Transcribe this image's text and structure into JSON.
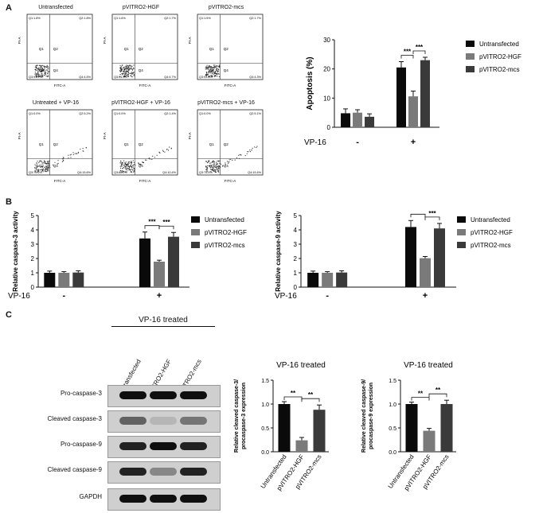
{
  "panels": {
    "a": "A",
    "b": "B",
    "c": "C"
  },
  "flow": {
    "x_label": "FITC-A",
    "y_label": "PI-A",
    "quadrants": {
      "q1": "Q1",
      "q2": "Q2",
      "q3": "Q3",
      "q4": "Q4"
    },
    "plots": [
      {
        "title": "Untransfected",
        "q1": "Q1:1.8%",
        "q2": "Q2:1.8%",
        "q3": "Q3:91.9%",
        "q4": "Q4:4.5%"
      },
      {
        "title": "pVITRO2-HGF",
        "q1": "Q1:1.6%",
        "q2": "Q2:1.7%",
        "q3": "Q3:91.9%",
        "q4": "Q4:4.7%"
      },
      {
        "title": "pVITRO2-mcs",
        "q1": "Q1:1.5%",
        "q2": "Q2:1.7%",
        "q3": "Q3:93.0%",
        "q4": "Q4:4.3%"
      },
      {
        "title": "Untreated + VP-16",
        "q1": "Q1:0.0%",
        "q2": "Q2:5.2%",
        "q3": "Q3:79.2%",
        "q4": "Q4:15.6%"
      },
      {
        "title": "pVITRO2-HGF + VP-16",
        "q1": "Q1:0.0%",
        "q2": "Q2:1.4%",
        "q3": "Q3:88.2%",
        "q4": "Q4:10.4%"
      },
      {
        "title": "pVITRO2-mcs + VP-16",
        "q1": "Q1:0.0%",
        "q2": "Q2:5.1%",
        "q3": "Q3:75.5%",
        "q4": "Q4:19.4%"
      }
    ]
  },
  "legend_names": [
    "Untransfected",
    "pVITRO2-HGF",
    "pVITRO2-mcs"
  ],
  "colors": {
    "untransfected": "#0a0a0a",
    "hgf": "#7a7a7a",
    "mcs": "#3a3a3a"
  },
  "vp16": {
    "label": "VP-16",
    "minus": "-",
    "plus": "+"
  },
  "significance": {
    "triple": "***",
    "double": "**"
  },
  "blot": {
    "header": "VP-16 treated",
    "lanes": [
      "Untransfected",
      "pVITRO2-HGF",
      "pVITRO2-mcs"
    ],
    "rows": [
      "Pro-caspase-3",
      "Cleaved caspase-3",
      "Pro-caspase-9",
      "Cleaved caspase-9",
      "GAPDH"
    ],
    "band_intensity": [
      [
        1.0,
        1.0,
        1.0
      ],
      [
        0.55,
        0.1,
        0.45
      ],
      [
        0.9,
        1.0,
        0.9
      ],
      [
        0.9,
        0.35,
        0.9
      ],
      [
        1.0,
        1.0,
        1.0
      ]
    ]
  },
  "chart_data": [
    {
      "id": "apoptosis",
      "type": "bar",
      "ylabel": "Apoptosis (%)",
      "ylim": [
        0,
        30
      ],
      "yticks": [
        0,
        10,
        20,
        30
      ],
      "groups": [
        "-",
        "+"
      ],
      "series": [
        {
          "name": "Untransfected",
          "values": [
            4.8,
            20.5
          ],
          "errors": [
            1.5,
            2.0
          ]
        },
        {
          "name": "pVITRO2-HGF",
          "values": [
            5.0,
            10.6
          ],
          "errors": [
            1.0,
            1.8
          ]
        },
        {
          "name": "pVITRO2-mcs",
          "values": [
            3.6,
            23.0
          ],
          "errors": [
            1.0,
            1.0
          ]
        }
      ]
    },
    {
      "id": "caspase3",
      "type": "bar",
      "ylabel": "Relative caspase-3 activity",
      "ylim": [
        0,
        5
      ],
      "yticks": [
        0,
        1,
        2,
        3,
        4,
        5
      ],
      "groups": [
        "-",
        "+"
      ],
      "series": [
        {
          "name": "Untransfected",
          "values": [
            1.0,
            3.4
          ],
          "errors": [
            0.12,
            0.45
          ]
        },
        {
          "name": "pVITRO2-HGF",
          "values": [
            1.0,
            1.78
          ],
          "errors": [
            0.08,
            0.1
          ]
        },
        {
          "name": "pVITRO2-mcs",
          "values": [
            1.02,
            3.52
          ],
          "errors": [
            0.12,
            0.3
          ]
        }
      ]
    },
    {
      "id": "caspase9",
      "type": "bar",
      "ylabel": "Relative caspase-9 activity",
      "ylim": [
        0,
        5
      ],
      "yticks": [
        0,
        1,
        2,
        3,
        4,
        5
      ],
      "groups": [
        "-",
        "+"
      ],
      "series": [
        {
          "name": "Untransfected",
          "values": [
            1.0,
            4.2
          ],
          "errors": [
            0.12,
            0.45
          ]
        },
        {
          "name": "pVITRO2-HGF",
          "values": [
            1.0,
            2.02
          ],
          "errors": [
            0.08,
            0.12
          ]
        },
        {
          "name": "pVITRO2-mcs",
          "values": [
            1.02,
            4.1
          ],
          "errors": [
            0.12,
            0.35
          ]
        }
      ]
    },
    {
      "id": "cleaved3",
      "type": "bar",
      "title": "VP-16 treated",
      "ylabel": "Relative cleaved caspase-3/ procaspase-3 expression",
      "ylim": [
        0,
        1.5
      ],
      "yticks": [
        0.0,
        0.5,
        1.0,
        1.5
      ],
      "categories": [
        "Untransfected",
        "pVITRO2-HGF",
        "pVITRO2-mcs"
      ],
      "values": [
        1.0,
        0.24,
        0.88
      ],
      "errors": [
        0.05,
        0.06,
        0.1
      ]
    },
    {
      "id": "cleaved9",
      "type": "bar",
      "title": "VP-16 treated",
      "ylabel": "Relative cleaved caspase-9/ procaspase-9 expression",
      "ylim": [
        0,
        1.5
      ],
      "yticks": [
        0.0,
        0.5,
        1.0,
        1.5
      ],
      "categories": [
        "Untransfected",
        "pVITRO2-HGF",
        "pVITRO2-mcs"
      ],
      "values": [
        1.0,
        0.44,
        1.0
      ],
      "errors": [
        0.04,
        0.05,
        0.08
      ]
    }
  ]
}
